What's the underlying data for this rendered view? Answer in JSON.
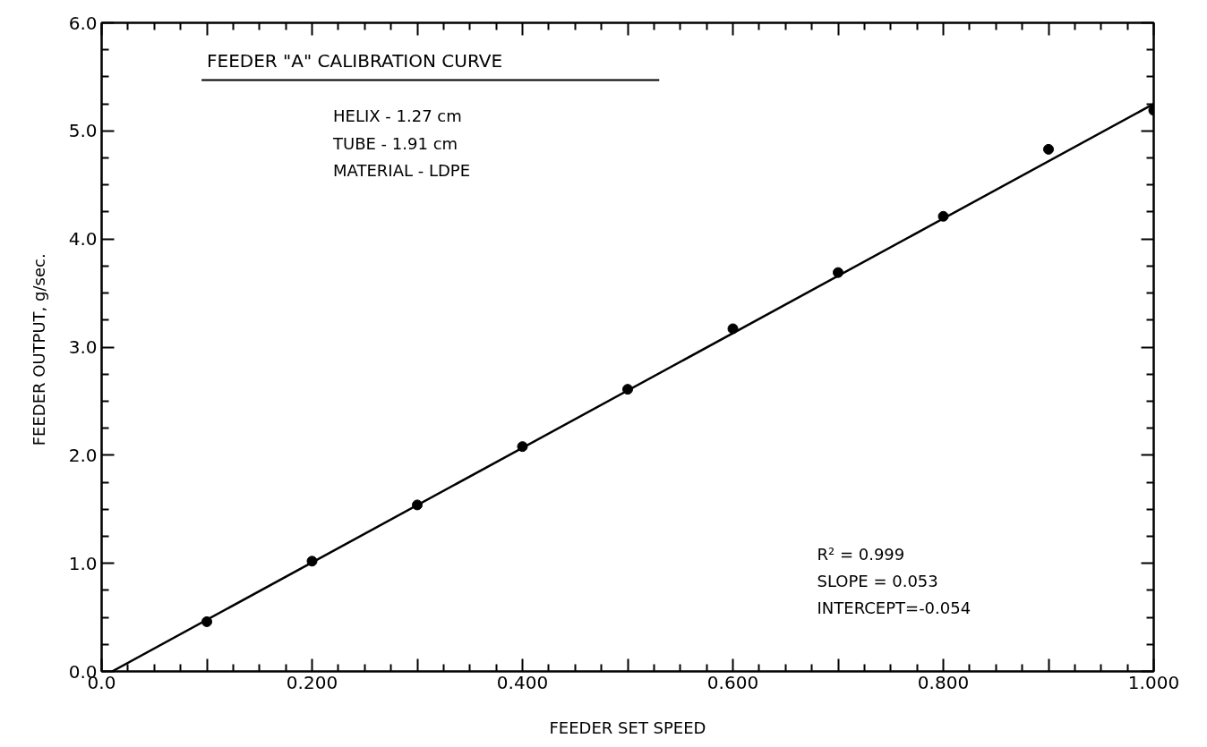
{
  "chart_data": {
    "type": "scatter",
    "xlabel": "FEEDER SET SPEED",
    "ylabel": "FEEDER OUTPUT,  g/sec.",
    "xlim": [
      0,
      1.0
    ],
    "ylim": [
      0,
      6.0
    ],
    "xticks": [
      {
        "value": 0,
        "label": "0.0"
      },
      {
        "value": 0.1,
        "label": null
      },
      {
        "value": 0.2,
        "label": "0.200"
      },
      {
        "value": 0.3,
        "label": null
      },
      {
        "value": 0.4,
        "label": "0.400"
      },
      {
        "value": 0.5,
        "label": null
      },
      {
        "value": 0.6,
        "label": "0.600"
      },
      {
        "value": 0.7,
        "label": null
      },
      {
        "value": 0.8,
        "label": "0.800"
      },
      {
        "value": 0.9,
        "label": null
      },
      {
        "value": 1.0,
        "label": "1.000"
      }
    ],
    "yticks": [
      {
        "value": 0,
        "label": "0.0"
      },
      {
        "value": 1,
        "label": "1.0"
      },
      {
        "value": 2,
        "label": "2.0"
      },
      {
        "value": 3,
        "label": "3.0"
      },
      {
        "value": 4,
        "label": "4.0"
      },
      {
        "value": 5,
        "label": "5.0"
      },
      {
        "value": 6,
        "label": "6.0"
      }
    ],
    "grid": false,
    "series": [
      {
        "marker": "circle",
        "color": "#000000",
        "x": [
          0.1,
          0.2,
          0.3,
          0.4,
          0.5,
          0.6,
          0.7,
          0.8,
          0.9,
          1.0
        ],
        "values": [
          0.46,
          1.02,
          1.54,
          2.08,
          2.61,
          3.17,
          3.69,
          4.21,
          4.83,
          5.19
        ]
      },
      {
        "type": "line",
        "marker": "none",
        "color": "#000000",
        "x": [
          0.01,
          1.0
        ],
        "values": [
          0.0,
          5.25
        ]
      }
    ],
    "annotations": [
      "FEEDER \"A\" CALIBRATION CURVE",
      "HELIX  -  1.27 cm",
      "TUBE  -  1.91 cm",
      "MATERIAL - LDPE",
      "R² = 0.999",
      "SLOPE = 0.053",
      "INTERCEPT=-0.054"
    ]
  }
}
